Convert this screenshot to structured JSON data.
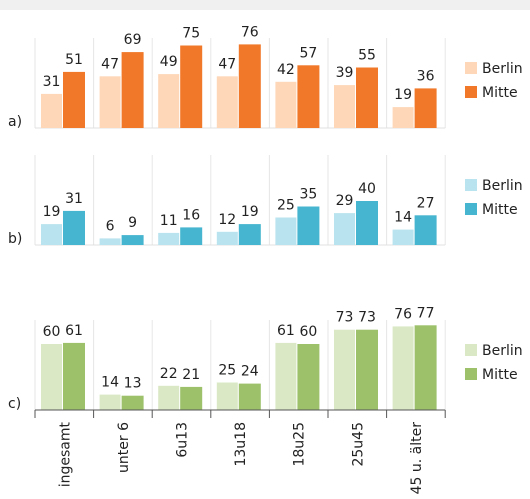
{
  "chart_data": [
    {
      "type": "bar",
      "label": "a)",
      "series": [
        {
          "name": "Berlin",
          "color": "#fdd7b8",
          "values": [
            31,
            47,
            49,
            47,
            42,
            39,
            19
          ]
        },
        {
          "name": "Mitte",
          "color": "#f07828",
          "values": [
            51,
            69,
            75,
            76,
            57,
            55,
            36
          ]
        }
      ]
    },
    {
      "type": "bar",
      "label": "b)",
      "series": [
        {
          "name": "Berlin",
          "color": "#b9e3ee",
          "values": [
            19,
            6,
            11,
            12,
            25,
            29,
            14
          ]
        },
        {
          "name": "Mitte",
          "color": "#46b5cf",
          "values": [
            31,
            9,
            16,
            19,
            35,
            40,
            27
          ]
        }
      ]
    },
    {
      "type": "bar",
      "label": "c)",
      "categories": [
        "ingesamt",
        "unter 6",
        "6u13",
        "13u18",
        "18u25",
        "25u45",
        "45 u. älter"
      ],
      "series": [
        {
          "name": "Berlin",
          "color": "#dae8c6",
          "values": [
            60,
            14,
            22,
            25,
            61,
            73,
            76
          ]
        },
        {
          "name": "Mitte",
          "color": "#9dc16b",
          "values": [
            61,
            13,
            21,
            24,
            60,
            73,
            77
          ]
        }
      ]
    }
  ]
}
